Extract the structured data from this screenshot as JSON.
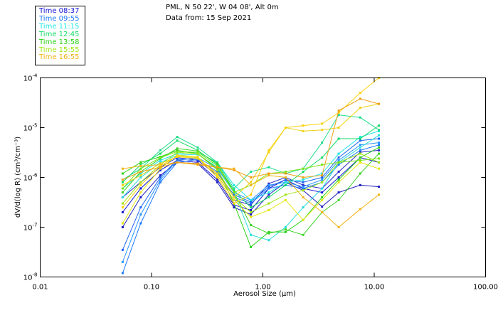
{
  "header": {
    "title_line1": "PML, N 50 22', W 04 08', Alt 0m",
    "title_line2": "Data from: 15 Sep 2021"
  },
  "legend": [
    {
      "label": "Time 08:37",
      "color": "#1414d2"
    },
    {
      "label": "Time 09:55",
      "color": "#1e78ff"
    },
    {
      "label": "Time 11:15",
      "color": "#1ee6e6"
    },
    {
      "label": "Time 12:45",
      "color": "#14dc64"
    },
    {
      "label": "Time 13:58",
      "color": "#28d214"
    },
    {
      "label": "Time 15:55",
      "color": "#a0e614"
    },
    {
      "label": "Time 16:55",
      "color": "#f0b414"
    }
  ],
  "chart_data": {
    "type": "line",
    "title": "PML, N 50 22', W 04 08', Alt 0m — Data from: 15 Sep 2021",
    "xlabel": "Aerosol Size (µm)",
    "ylabel": "dV/d(log R) (cm³/cm⁻³)",
    "xscale": "log",
    "yscale": "log",
    "xlim": [
      0.01,
      100
    ],
    "ylim": [
      1e-08,
      0.0001
    ],
    "xticks": [
      {
        "value": 0.01,
        "label": "0.01"
      },
      {
        "value": 0.1,
        "label": "0.10"
      },
      {
        "value": 1,
        "label": "1.00"
      },
      {
        "value": 10,
        "label": "10.00"
      },
      {
        "value": 100,
        "label": "100.00"
      }
    ],
    "yticks": [
      {
        "value": 0.0001,
        "base": "10",
        "exp": "-4"
      },
      {
        "value": 1e-05,
        "base": "10",
        "exp": "-5"
      },
      {
        "value": 1e-06,
        "base": "10",
        "exp": "-6"
      },
      {
        "value": 1e-07,
        "base": "10",
        "exp": "-7"
      },
      {
        "value": 1e-08,
        "base": "10",
        "exp": "-8"
      }
    ],
    "grid": false,
    "legend_position": "top-left",
    "x": [
      0.055,
      0.08,
      0.12,
      0.17,
      0.26,
      0.39,
      0.55,
      0.78,
      1.13,
      1.6,
      2.3,
      3.4,
      4.8,
      7.5,
      11.0
    ],
    "series": [
      {
        "name": "Time 08:37",
        "color": "#1414d2",
        "values": [
          2e-07,
          6e-07,
          1.4e-06,
          2.2e-06,
          2e-06,
          9e-07,
          2.8e-07,
          2.2e-07,
          6e-07,
          9e-07,
          6e-07,
          5e-07,
          1e-06,
          2.5e-06,
          2e-06
        ]
      },
      {
        "name": "Time 08:37",
        "color": "#2828c8",
        "values": [
          4e-07,
          8e-07,
          1.6e-06,
          2.5e-06,
          2.2e-06,
          1.1e-06,
          3.5e-07,
          2.8e-07,
          7.5e-07,
          1e-06,
          7e-07,
          6e-07,
          1.3e-06,
          3.2e-06,
          3.5e-06
        ]
      },
      {
        "name": "Time 08:37",
        "color": "#1e1ebe",
        "values": [
          1e-07,
          4e-07,
          1.1e-06,
          2e-06,
          1.9e-06,
          8e-07,
          2.5e-07,
          1.8e-07,
          4.5e-07,
          8e-07,
          5.5e-07,
          2.6e-07,
          5e-07,
          7e-07,
          6.5e-07
        ]
      },
      {
        "name": "Time 09:55",
        "color": "#1e78ff",
        "values": [
          1.2e-08,
          1.2e-07,
          8e-07,
          2e-06,
          2.3e-06,
          1.3e-06,
          4e-07,
          3e-07,
          6e-07,
          7e-07,
          6e-07,
          8e-07,
          1.8e-06,
          3.5e-06,
          4.5e-06
        ]
      },
      {
        "name": "Time 09:55",
        "color": "#2896ff",
        "values": [
          2e-08,
          1.8e-07,
          9e-07,
          2.2e-06,
          2.5e-06,
          1.5e-06,
          5e-07,
          3.5e-07,
          7e-07,
          8e-07,
          6.5e-07,
          9e-07,
          2.2e-06,
          4.5e-06,
          5e-06
        ]
      },
      {
        "name": "Time 09:55",
        "color": "#1e64f0",
        "values": [
          3.5e-08,
          2.5e-07,
          1e-06,
          2.3e-06,
          2.4e-06,
          1.2e-06,
          4.5e-07,
          3.2e-07,
          6.5e-07,
          9e-07,
          8e-07,
          1e-06,
          2.5e-06,
          5.5e-06,
          6e-06
        ]
      },
      {
        "name": "Time 11:15",
        "color": "#1ee6e6",
        "values": [
          6e-07,
          1.2e-06,
          2.2e-06,
          3e-06,
          3.2e-06,
          2e-06,
          7e-07,
          3.5e-07,
          5e-07,
          8e-07,
          9e-07,
          1.2e-06,
          3e-06,
          6.5e-06,
          8.5e-06
        ]
      },
      {
        "name": "Time 11:15",
        "color": "#28dcdc",
        "values": [
          4e-07,
          1e-06,
          2e-06,
          2.8e-06,
          2.9e-06,
          1.6e-06,
          5e-07,
          7e-08,
          5.5e-08,
          1e-07,
          2.5e-07,
          6e-07,
          2e-06,
          4e-06,
          7e-06
        ]
      },
      {
        "name": "Time 12:45",
        "color": "#14dc64",
        "values": [
          8e-07,
          1.8e-06,
          3e-06,
          5.5e-06,
          3.5e-06,
          1.8e-06,
          5.5e-07,
          2.5e-07,
          4e-07,
          7e-07,
          1.3e-06,
          2.5e-06,
          6e-06,
          6e-06,
          1.1e-05
        ]
      },
      {
        "name": "Time 12:45",
        "color": "#1edc8c",
        "values": [
          9e-07,
          1.5e-06,
          3.5e-06,
          6.5e-06,
          4e-06,
          2e-06,
          6e-07,
          1.3e-06,
          1.6e-06,
          1.2e-06,
          1.5e-06,
          5e-06,
          1.8e-05,
          1.6e-05,
          9e-06
        ]
      },
      {
        "name": "Time 13:58",
        "color": "#28d214",
        "values": [
          1.2e-06,
          2e-06,
          2.6e-06,
          3.5e-06,
          3e-06,
          1.5e-06,
          3e-07,
          4e-08,
          8e-08,
          8e-08,
          1.4e-07,
          4e-07,
          9e-07,
          2.5e-06,
          4e-06
        ]
      },
      {
        "name": "Time 13:58",
        "color": "#3cd228",
        "values": [
          5e-07,
          1.3e-06,
          2.4e-06,
          3.8e-06,
          3.4e-06,
          1.9e-06,
          5e-07,
          1.1e-07,
          7.5e-08,
          9e-08,
          7e-08,
          2e-07,
          3.5e-07,
          1.2e-06,
          3e-06
        ]
      },
      {
        "name": "Time 15:55",
        "color": "#a0e614",
        "values": [
          3e-07,
          8e-07,
          1.8e-06,
          3.2e-06,
          3e-06,
          1.4e-06,
          4e-07,
          2e-07,
          3e-07,
          4.5e-07,
          5.5e-07,
          8e-07,
          2e-06,
          3e-06,
          2e-06
        ]
      },
      {
        "name": "Time 15:55",
        "color": "#78e614",
        "values": [
          6e-07,
          1.5e-06,
          2.5e-06,
          3.3e-06,
          3.2e-06,
          1.7e-06,
          5e-07,
          7e-07,
          1.2e-06,
          1.3e-06,
          1.5e-06,
          1.8e-06,
          2e-06,
          2.2e-06,
          2.4e-06
        ]
      },
      {
        "name": "Time 15:55",
        "color": "#e6e614",
        "values": [
          1.2e-07,
          5e-07,
          1.5e-06,
          2.8e-06,
          2.6e-06,
          1.1e-06,
          3.5e-07,
          1.6e-07,
          2.2e-07,
          3.5e-07,
          1.4e-07,
          3.5e-07,
          8e-07,
          2e-06,
          1.5e-06
        ]
      },
      {
        "name": "Time 16:55",
        "color": "#f0b414",
        "values": [
          1.5e-06,
          1.7e-06,
          1.8e-06,
          2e-06,
          1.8e-06,
          1.6e-06,
          1.5e-06,
          7e-07,
          1.1e-06,
          1e-06,
          4e-07,
          2e-07,
          1e-07,
          2.3e-07,
          4.5e-07
        ]
      },
      {
        "name": "Time 16:55",
        "color": "#f0d214",
        "values": [
          7e-07,
          1.1e-06,
          1.9e-06,
          2.6e-06,
          2.4e-06,
          1.2e-06,
          4e-07,
          8e-07,
          3.2e-06,
          1e-05,
          8.5e-06,
          9e-06,
          1e-05,
          2.5e-05,
          3e-05
        ]
      },
      {
        "name": "Time 16:55",
        "color": "#fad20a",
        "values": [
          2.5e-07,
          7e-07,
          1.7e-06,
          2.7e-06,
          2.5e-06,
          1e-06,
          3e-07,
          4.5e-07,
          3.5e-06,
          1e-05,
          1.1e-05,
          1.2e-05,
          2e-05,
          5e-05,
          0.0001
        ]
      },
      {
        "name": "Time 16:55",
        "color": "#f0a014",
        "values": [
          9e-07,
          1.3e-06,
          1.6e-06,
          2e-06,
          1.9e-06,
          1.6e-06,
          1.4e-06,
          1e-06,
          1.2e-06,
          1.2e-06,
          1e-06,
          1.1e-06,
          2.2e-05,
          3.8e-05,
          3e-05
        ]
      }
    ]
  }
}
